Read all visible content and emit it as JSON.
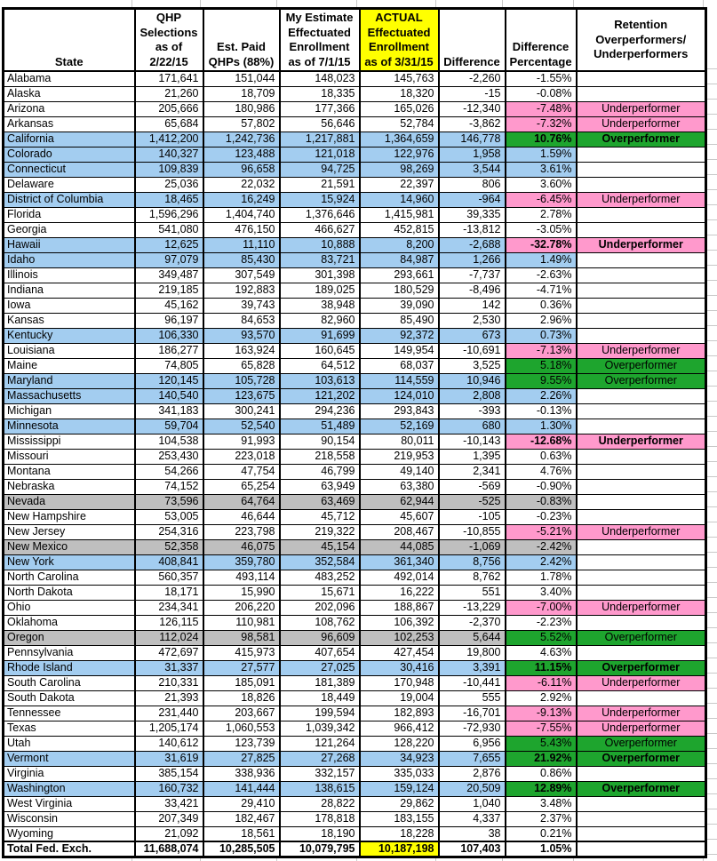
{
  "colors": {
    "row_blue": "#a3cdf0",
    "row_gray": "#bfbfbf",
    "underperformer_pink": "#ff99cc",
    "overperformer_green": "#1ea52e",
    "highlight_yellow": "#ffff00",
    "gridline_gray": "#c9c9c9",
    "border_black": "#000000"
  },
  "table": {
    "columns": [
      {
        "key": "state",
        "label": "State"
      },
      {
        "key": "qhp_selections",
        "label": "QHP\nSelections\nas of\n2/22/15"
      },
      {
        "key": "est_paid",
        "label": "Est. Paid\nQHPs (88%)"
      },
      {
        "key": "my_estimate",
        "label": "My Estimate\nEffectuated\nEnrollment\nas of 7/1/15"
      },
      {
        "key": "actual",
        "label": "ACTUAL\nEffectuated\nEnrollment\nas of 3/31/15",
        "highlight": "yellow"
      },
      {
        "key": "difference",
        "label": "Difference"
      },
      {
        "key": "pct",
        "label": "Difference\nPercentage"
      },
      {
        "key": "retention",
        "label": "Retention\nOverperformers/\nUnderperformers"
      }
    ],
    "rows": [
      {
        "state": "Alabama",
        "fill": "white",
        "qhp_selections": "171,641",
        "est_paid": "151,044",
        "my_estimate": "148,023",
        "actual": "145,763",
        "difference": "-2,260",
        "pct": "-1.55%",
        "status_fill": "",
        "retention": "",
        "emphasis": false
      },
      {
        "state": "Alaska",
        "fill": "white",
        "qhp_selections": "21,260",
        "est_paid": "18,709",
        "my_estimate": "18,335",
        "actual": "18,320",
        "difference": "-15",
        "pct": "-0.08%",
        "status_fill": "",
        "retention": "",
        "emphasis": false
      },
      {
        "state": "Arizona",
        "fill": "white",
        "qhp_selections": "205,666",
        "est_paid": "180,986",
        "my_estimate": "177,366",
        "actual": "165,026",
        "difference": "-12,340",
        "pct": "-7.48%",
        "status_fill": "pink",
        "retention": "Underperformer",
        "emphasis": false
      },
      {
        "state": "Arkansas",
        "fill": "white",
        "qhp_selections": "65,684",
        "est_paid": "57,802",
        "my_estimate": "56,646",
        "actual": "52,784",
        "difference": "-3,862",
        "pct": "-7.32%",
        "status_fill": "pink",
        "retention": "Underperformer",
        "emphasis": false
      },
      {
        "state": "California",
        "fill": "blue",
        "qhp_selections": "1,412,200",
        "est_paid": "1,242,736",
        "my_estimate": "1,217,881",
        "actual": "1,364,659",
        "difference": "146,778",
        "pct": "10.76%",
        "status_fill": "green",
        "retention": "Overperformer",
        "emphasis": true
      },
      {
        "state": "Colorado",
        "fill": "blue",
        "qhp_selections": "140,327",
        "est_paid": "123,488",
        "my_estimate": "121,018",
        "actual": "122,976",
        "difference": "1,958",
        "pct": "1.59%",
        "status_fill": "",
        "retention": "",
        "emphasis": false
      },
      {
        "state": "Connecticut",
        "fill": "blue",
        "qhp_selections": "109,839",
        "est_paid": "96,658",
        "my_estimate": "94,725",
        "actual": "98,269",
        "difference": "3,544",
        "pct": "3.61%",
        "status_fill": "",
        "retention": "",
        "emphasis": false
      },
      {
        "state": "Delaware",
        "fill": "white",
        "qhp_selections": "25,036",
        "est_paid": "22,032",
        "my_estimate": "21,591",
        "actual": "22,397",
        "difference": "806",
        "pct": "3.60%",
        "status_fill": "",
        "retention": "",
        "emphasis": false
      },
      {
        "state": "District of Columbia",
        "fill": "blue",
        "qhp_selections": "18,465",
        "est_paid": "16,249",
        "my_estimate": "15,924",
        "actual": "14,960",
        "difference": "-964",
        "pct": "-6.45%",
        "status_fill": "pink",
        "retention": "Underperformer",
        "emphasis": false
      },
      {
        "state": "Florida",
        "fill": "white",
        "qhp_selections": "1,596,296",
        "est_paid": "1,404,740",
        "my_estimate": "1,376,646",
        "actual": "1,415,981",
        "difference": "39,335",
        "pct": "2.78%",
        "status_fill": "",
        "retention": "",
        "emphasis": false
      },
      {
        "state": "Georgia",
        "fill": "white",
        "qhp_selections": "541,080",
        "est_paid": "476,150",
        "my_estimate": "466,627",
        "actual": "452,815",
        "difference": "-13,812",
        "pct": "-3.05%",
        "status_fill": "",
        "retention": "",
        "emphasis": false
      },
      {
        "state": "Hawaii",
        "fill": "blue",
        "qhp_selections": "12,625",
        "est_paid": "11,110",
        "my_estimate": "10,888",
        "actual": "8,200",
        "difference": "-2,688",
        "pct": "-32.78%",
        "status_fill": "pink",
        "retention": "Underperformer",
        "emphasis": true
      },
      {
        "state": "Idaho",
        "fill": "blue",
        "qhp_selections": "97,079",
        "est_paid": "85,430",
        "my_estimate": "83,721",
        "actual": "84,987",
        "difference": "1,266",
        "pct": "1.49%",
        "status_fill": "",
        "retention": "",
        "emphasis": false
      },
      {
        "state": "Illinois",
        "fill": "white",
        "qhp_selections": "349,487",
        "est_paid": "307,549",
        "my_estimate": "301,398",
        "actual": "293,661",
        "difference": "-7,737",
        "pct": "-2.63%",
        "status_fill": "",
        "retention": "",
        "emphasis": false
      },
      {
        "state": "Indiana",
        "fill": "white",
        "qhp_selections": "219,185",
        "est_paid": "192,883",
        "my_estimate": "189,025",
        "actual": "180,529",
        "difference": "-8,496",
        "pct": "-4.71%",
        "status_fill": "",
        "retention": "",
        "emphasis": false
      },
      {
        "state": "Iowa",
        "fill": "white",
        "qhp_selections": "45,162",
        "est_paid": "39,743",
        "my_estimate": "38,948",
        "actual": "39,090",
        "difference": "142",
        "pct": "0.36%",
        "status_fill": "",
        "retention": "",
        "emphasis": false
      },
      {
        "state": "Kansas",
        "fill": "white",
        "qhp_selections": "96,197",
        "est_paid": "84,653",
        "my_estimate": "82,960",
        "actual": "85,490",
        "difference": "2,530",
        "pct": "2.96%",
        "status_fill": "",
        "retention": "",
        "emphasis": false
      },
      {
        "state": "Kentucky",
        "fill": "blue",
        "qhp_selections": "106,330",
        "est_paid": "93,570",
        "my_estimate": "91,699",
        "actual": "92,372",
        "difference": "673",
        "pct": "0.73%",
        "status_fill": "",
        "retention": "",
        "emphasis": false
      },
      {
        "state": "Louisiana",
        "fill": "white",
        "qhp_selections": "186,277",
        "est_paid": "163,924",
        "my_estimate": "160,645",
        "actual": "149,954",
        "difference": "-10,691",
        "pct": "-7.13%",
        "status_fill": "pink",
        "retention": "Underperformer",
        "emphasis": false
      },
      {
        "state": "Maine",
        "fill": "white",
        "qhp_selections": "74,805",
        "est_paid": "65,828",
        "my_estimate": "64,512",
        "actual": "68,037",
        "difference": "3,525",
        "pct": "5.18%",
        "status_fill": "green",
        "retention": "Overperformer",
        "emphasis": false
      },
      {
        "state": "Maryland",
        "fill": "blue",
        "qhp_selections": "120,145",
        "est_paid": "105,728",
        "my_estimate": "103,613",
        "actual": "114,559",
        "difference": "10,946",
        "pct": "9.55%",
        "status_fill": "green",
        "retention": "Overperformer",
        "emphasis": false
      },
      {
        "state": "Massachusetts",
        "fill": "blue",
        "qhp_selections": "140,540",
        "est_paid": "123,675",
        "my_estimate": "121,202",
        "actual": "124,010",
        "difference": "2,808",
        "pct": "2.26%",
        "status_fill": "",
        "retention": "",
        "emphasis": false
      },
      {
        "state": "Michigan",
        "fill": "white",
        "qhp_selections": "341,183",
        "est_paid": "300,241",
        "my_estimate": "294,236",
        "actual": "293,843",
        "difference": "-393",
        "pct": "-0.13%",
        "status_fill": "",
        "retention": "",
        "emphasis": false
      },
      {
        "state": "Minnesota",
        "fill": "blue",
        "qhp_selections": "59,704",
        "est_paid": "52,540",
        "my_estimate": "51,489",
        "actual": "52,169",
        "difference": "680",
        "pct": "1.30%",
        "status_fill": "",
        "retention": "",
        "emphasis": false
      },
      {
        "state": "Mississippi",
        "fill": "white",
        "qhp_selections": "104,538",
        "est_paid": "91,993",
        "my_estimate": "90,154",
        "actual": "80,011",
        "difference": "-10,143",
        "pct": "-12.68%",
        "status_fill": "pink",
        "retention": "Underperformer",
        "emphasis": true
      },
      {
        "state": "Missouri",
        "fill": "white",
        "qhp_selections": "253,430",
        "est_paid": "223,018",
        "my_estimate": "218,558",
        "actual": "219,953",
        "difference": "1,395",
        "pct": "0.63%",
        "status_fill": "",
        "retention": "",
        "emphasis": false
      },
      {
        "state": "Montana",
        "fill": "white",
        "qhp_selections": "54,266",
        "est_paid": "47,754",
        "my_estimate": "46,799",
        "actual": "49,140",
        "difference": "2,341",
        "pct": "4.76%",
        "status_fill": "",
        "retention": "",
        "emphasis": false
      },
      {
        "state": "Nebraska",
        "fill": "white",
        "qhp_selections": "74,152",
        "est_paid": "65,254",
        "my_estimate": "63,949",
        "actual": "63,380",
        "difference": "-569",
        "pct": "-0.90%",
        "status_fill": "",
        "retention": "",
        "emphasis": false
      },
      {
        "state": "Nevada",
        "fill": "gray",
        "qhp_selections": "73,596",
        "est_paid": "64,764",
        "my_estimate": "63,469",
        "actual": "62,944",
        "difference": "-525",
        "pct": "-0.83%",
        "status_fill": "",
        "retention": "",
        "emphasis": false
      },
      {
        "state": "New Hampshire",
        "fill": "white",
        "qhp_selections": "53,005",
        "est_paid": "46,644",
        "my_estimate": "45,712",
        "actual": "45,607",
        "difference": "-105",
        "pct": "-0.23%",
        "status_fill": "",
        "retention": "",
        "emphasis": false
      },
      {
        "state": "New Jersey",
        "fill": "white",
        "qhp_selections": "254,316",
        "est_paid": "223,798",
        "my_estimate": "219,322",
        "actual": "208,467",
        "difference": "-10,855",
        "pct": "-5.21%",
        "status_fill": "pink",
        "retention": "Underperformer",
        "emphasis": false
      },
      {
        "state": "New Mexico",
        "fill": "gray",
        "qhp_selections": "52,358",
        "est_paid": "46,075",
        "my_estimate": "45,154",
        "actual": "44,085",
        "difference": "-1,069",
        "pct": "-2.42%",
        "status_fill": "",
        "retention": "",
        "emphasis": false
      },
      {
        "state": "New York",
        "fill": "blue",
        "qhp_selections": "408,841",
        "est_paid": "359,780",
        "my_estimate": "352,584",
        "actual": "361,340",
        "difference": "8,756",
        "pct": "2.42%",
        "status_fill": "",
        "retention": "",
        "emphasis": false
      },
      {
        "state": "North Carolina",
        "fill": "white",
        "qhp_selections": "560,357",
        "est_paid": "493,114",
        "my_estimate": "483,252",
        "actual": "492,014",
        "difference": "8,762",
        "pct": "1.78%",
        "status_fill": "",
        "retention": "",
        "emphasis": false
      },
      {
        "state": "North Dakota",
        "fill": "white",
        "qhp_selections": "18,171",
        "est_paid": "15,990",
        "my_estimate": "15,671",
        "actual": "16,222",
        "difference": "551",
        "pct": "3.40%",
        "status_fill": "",
        "retention": "",
        "emphasis": false
      },
      {
        "state": "Ohio",
        "fill": "white",
        "qhp_selections": "234,341",
        "est_paid": "206,220",
        "my_estimate": "202,096",
        "actual": "188,867",
        "difference": "-13,229",
        "pct": "-7.00%",
        "status_fill": "pink",
        "retention": "Underperformer",
        "emphasis": false
      },
      {
        "state": "Oklahoma",
        "fill": "white",
        "qhp_selections": "126,115",
        "est_paid": "110,981",
        "my_estimate": "108,762",
        "actual": "106,392",
        "difference": "-2,370",
        "pct": "-2.23%",
        "status_fill": "",
        "retention": "",
        "emphasis": false
      },
      {
        "state": "Oregon",
        "fill": "gray",
        "qhp_selections": "112,024",
        "est_paid": "98,581",
        "my_estimate": "96,609",
        "actual": "102,253",
        "difference": "5,644",
        "pct": "5.52%",
        "status_fill": "green",
        "retention": "Overperformer",
        "emphasis": false
      },
      {
        "state": "Pennsylvania",
        "fill": "white",
        "qhp_selections": "472,697",
        "est_paid": "415,973",
        "my_estimate": "407,654",
        "actual": "427,454",
        "difference": "19,800",
        "pct": "4.63%",
        "status_fill": "",
        "retention": "",
        "emphasis": false
      },
      {
        "state": "Rhode Island",
        "fill": "blue",
        "qhp_selections": "31,337",
        "est_paid": "27,577",
        "my_estimate": "27,025",
        "actual": "30,416",
        "difference": "3,391",
        "pct": "11.15%",
        "status_fill": "green",
        "retention": "Overperformer",
        "emphasis": true
      },
      {
        "state": "South Carolina",
        "fill": "white",
        "qhp_selections": "210,331",
        "est_paid": "185,091",
        "my_estimate": "181,389",
        "actual": "170,948",
        "difference": "-10,441",
        "pct": "-6.11%",
        "status_fill": "pink",
        "retention": "Underperformer",
        "emphasis": false
      },
      {
        "state": "South Dakota",
        "fill": "white",
        "qhp_selections": "21,393",
        "est_paid": "18,826",
        "my_estimate": "18,449",
        "actual": "19,004",
        "difference": "555",
        "pct": "2.92%",
        "status_fill": "",
        "retention": "",
        "emphasis": false
      },
      {
        "state": "Tennessee",
        "fill": "white",
        "qhp_selections": "231,440",
        "est_paid": "203,667",
        "my_estimate": "199,594",
        "actual": "182,893",
        "difference": "-16,701",
        "pct": "-9.13%",
        "status_fill": "pink",
        "retention": "Underperformer",
        "emphasis": false
      },
      {
        "state": "Texas",
        "fill": "white",
        "qhp_selections": "1,205,174",
        "est_paid": "1,060,553",
        "my_estimate": "1,039,342",
        "actual": "966,412",
        "difference": "-72,930",
        "pct": "-7.55%",
        "status_fill": "pink",
        "retention": "Underperformer",
        "emphasis": false
      },
      {
        "state": "Utah",
        "fill": "white",
        "qhp_selections": "140,612",
        "est_paid": "123,739",
        "my_estimate": "121,264",
        "actual": "128,220",
        "difference": "6,956",
        "pct": "5.43%",
        "status_fill": "green",
        "retention": "Overperformer",
        "emphasis": false
      },
      {
        "state": "Vermont",
        "fill": "blue",
        "qhp_selections": "31,619",
        "est_paid": "27,825",
        "my_estimate": "27,268",
        "actual": "34,923",
        "difference": "7,655",
        "pct": "21.92%",
        "status_fill": "green",
        "retention": "Overperformer",
        "emphasis": true
      },
      {
        "state": "Virginia",
        "fill": "white",
        "qhp_selections": "385,154",
        "est_paid": "338,936",
        "my_estimate": "332,157",
        "actual": "335,033",
        "difference": "2,876",
        "pct": "0.86%",
        "status_fill": "",
        "retention": "",
        "emphasis": false
      },
      {
        "state": "Washington",
        "fill": "blue",
        "qhp_selections": "160,732",
        "est_paid": "141,444",
        "my_estimate": "138,615",
        "actual": "159,124",
        "difference": "20,509",
        "pct": "12.89%",
        "status_fill": "green",
        "retention": "Overperformer",
        "emphasis": true
      },
      {
        "state": "West Virginia",
        "fill": "white",
        "qhp_selections": "33,421",
        "est_paid": "29,410",
        "my_estimate": "28,822",
        "actual": "29,862",
        "difference": "1,040",
        "pct": "3.48%",
        "status_fill": "",
        "retention": "",
        "emphasis": false
      },
      {
        "state": "Wisconsin",
        "fill": "white",
        "qhp_selections": "207,349",
        "est_paid": "182,467",
        "my_estimate": "178,818",
        "actual": "183,155",
        "difference": "4,337",
        "pct": "2.37%",
        "status_fill": "",
        "retention": "",
        "emphasis": false
      },
      {
        "state": "Wyoming",
        "fill": "white",
        "qhp_selections": "21,092",
        "est_paid": "18,561",
        "my_estimate": "18,190",
        "actual": "18,228",
        "difference": "38",
        "pct": "0.21%",
        "status_fill": "",
        "retention": "",
        "emphasis": false
      }
    ],
    "total_row": {
      "state": "Total Fed. Exch.",
      "qhp_selections": "11,688,074",
      "est_paid": "10,285,505",
      "my_estimate": "10,079,795",
      "actual": "10,187,198",
      "actual_highlight": "yellow",
      "difference": "107,403",
      "pct": "1.05%",
      "retention": ""
    }
  }
}
